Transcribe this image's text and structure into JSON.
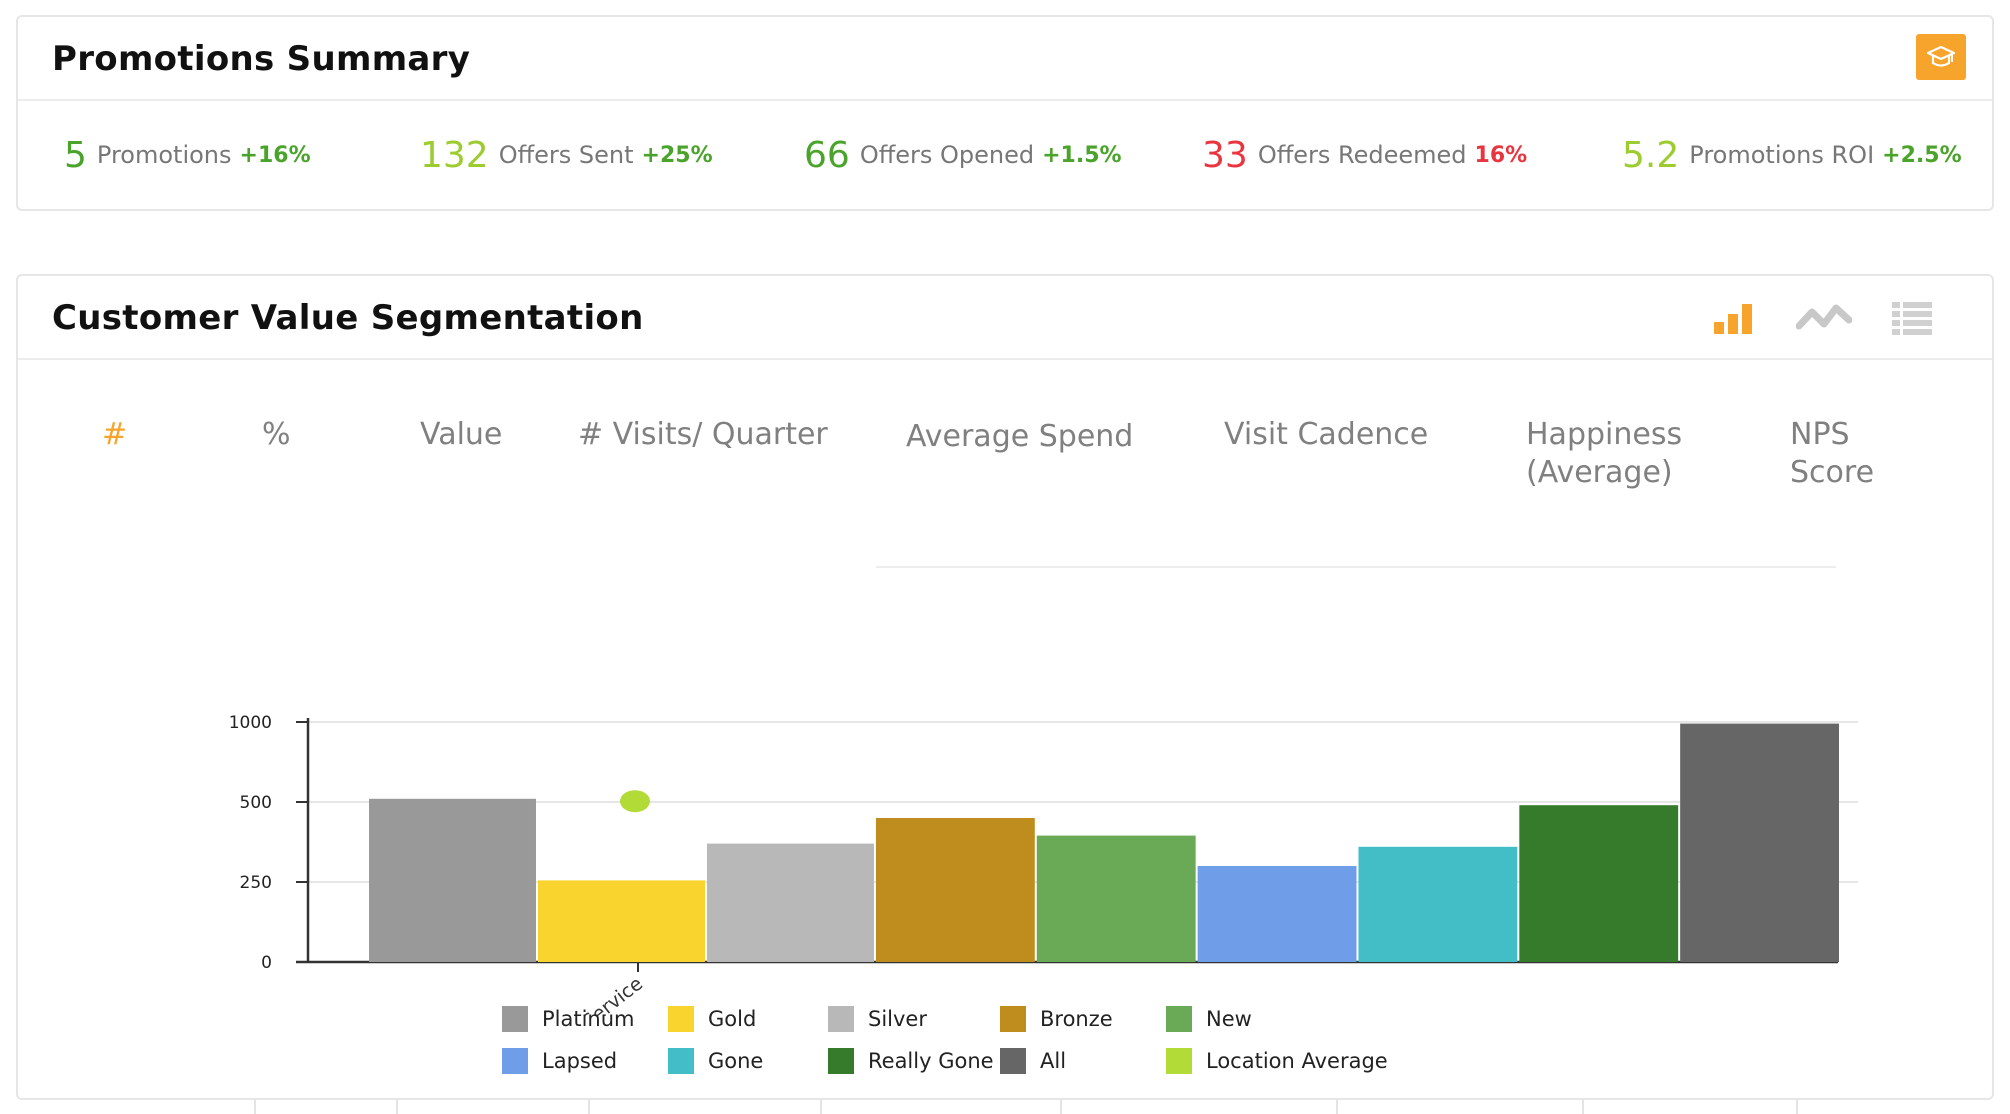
{
  "promotions_summary": {
    "title": "Promotions Summary",
    "stats": [
      {
        "value": "5",
        "label": "Promotions",
        "change": "+16%",
        "value_color": "#4aa32a",
        "change_color": "#4aa32a"
      },
      {
        "value": "132",
        "label": "Offers Sent",
        "change": "+25%",
        "value_color": "#9ccc2f",
        "change_color": "#4aa32a"
      },
      {
        "value": "66",
        "label": "Offers Opened",
        "change": "+1.5%",
        "value_color": "#4aa32a",
        "change_color": "#4aa32a"
      },
      {
        "value": "33",
        "label": "Offers Redeemed",
        "change": "16%",
        "value_color": "#e8353f",
        "change_color": "#e8353f"
      },
      {
        "value": "5.2",
        "label": "Promotions ROI",
        "change": "+2.5%",
        "value_color": "#9ccc2f",
        "change_color": "#4aa32a"
      }
    ],
    "action_icon": "graduation-cap-icon",
    "accent": "#f7a42c"
  },
  "segmentation": {
    "title": "Customer Value Segmentation",
    "view_icons": [
      "bar-chart-icon",
      "line-chart-icon",
      "table-list-icon"
    ],
    "active_view": "bar-chart-icon",
    "columns": [
      "#",
      "%",
      "Value",
      "# Visits/ Quarter",
      "Average Spend",
      "Visit Cadence",
      "Happiness\n(Average)",
      "NPS\nScore"
    ],
    "active_column": "#"
  },
  "chart_data": {
    "type": "bar",
    "categories": [
      "Service"
    ],
    "series": [
      {
        "name": "Platinum",
        "values": [
          520
        ],
        "color": "#999999"
      },
      {
        "name": "Gold",
        "values": [
          255
        ],
        "color": "#f9d32e"
      },
      {
        "name": "Silver",
        "values": [
          370
        ],
        "color": "#b8b8b8"
      },
      {
        "name": "Bronze",
        "values": [
          450
        ],
        "color": "#bf8d1d"
      },
      {
        "name": "New",
        "values": [
          395
        ],
        "color": "#6aa956"
      },
      {
        "name": "Lapsed",
        "values": [
          300
        ],
        "color": "#6f9de7"
      },
      {
        "name": "Gone",
        "values": [
          360
        ],
        "color": "#43bdc6"
      },
      {
        "name": "Really Gone",
        "values": [
          490
        ],
        "color": "#367a2b"
      },
      {
        "name": "All",
        "values": [
          990
        ],
        "color": "#666666"
      }
    ],
    "markers": [
      {
        "name": "Location Average",
        "value": 505,
        "color": "#b3db37"
      }
    ],
    "yticks": [
      {
        "label": "0",
        "value": 0
      },
      {
        "label": "250",
        "value": 250
      },
      {
        "label": "500",
        "value": 500
      },
      {
        "label": "1000",
        "value": 1000
      }
    ],
    "grid": true,
    "legend_position": "bottom"
  }
}
